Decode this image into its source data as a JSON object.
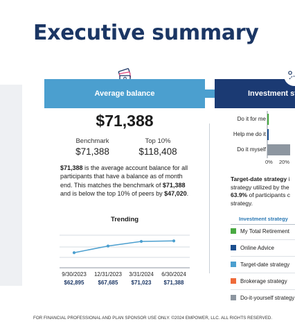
{
  "page": {
    "title": "Executive summary"
  },
  "average_balance": {
    "header": "Average balance",
    "value": "$71,388",
    "benchmark_label": "Benchmark",
    "benchmark_value": "$71,388",
    "top10_label": "Top 10%",
    "top10_value": "$118,408",
    "para": {
      "p1_bold": "$71,388",
      "p1_rest": " is the average account balance for all participants that have a balance as of month end. This matches the benchmark of ",
      "p2_bold": "$71,388",
      "p2_rest": " and is below the top 10% of peers by ",
      "p3_bold": "$47,020",
      "p3_rest": "."
    },
    "trending_title": "Trending",
    "trend": [
      {
        "date": "9/30/2023",
        "value_label": "$62,895",
        "value": 62895
      },
      {
        "date": "12/31/2023",
        "value_label": "$67,685",
        "value": 67685
      },
      {
        "date": "3/31/2024",
        "value_label": "$71,023",
        "value": 71023
      },
      {
        "date": "6/30/2024",
        "value_label": "$71,388",
        "value": 71388
      }
    ]
  },
  "investment_strategy": {
    "header": "Investment stra",
    "bars": [
      {
        "label": "Do it for me",
        "color": "#49a942",
        "value": 2
      },
      {
        "label": "Help me do it",
        "color": "#1b4f8f",
        "value": 1
      },
      {
        "label": "Do it myself",
        "color": "#8d96a0",
        "value": 30
      }
    ],
    "ticks": [
      "0%",
      "20%"
    ],
    "text": {
      "l1_bold": "Target-date strategy",
      "l1_rest": " i",
      "l2": "strategy utilized by the",
      "l3_bold": "63.9%",
      "l3_rest": " of participants c",
      "l4": "strategy."
    },
    "legend_header": "Investment strategy",
    "legend": [
      {
        "label": "My Total Retirement",
        "color": "#49a942"
      },
      {
        "label": "Online Advice",
        "color": "#1b4f8f"
      },
      {
        "label": "Target-date strategy",
        "color": "#4b9fcf"
      },
      {
        "label": "Brokerage strategy",
        "color": "#ef6b3a"
      },
      {
        "label": "Do-it-yourself strategy",
        "color": "#8d96a0"
      }
    ]
  },
  "footer": "FOR FINANCIAL PROFESSIONAL AND PLAN SPONSOR USE ONLY. ©2024 EMPOWER, LLC. ALL RIGHTS RESERVED."
}
